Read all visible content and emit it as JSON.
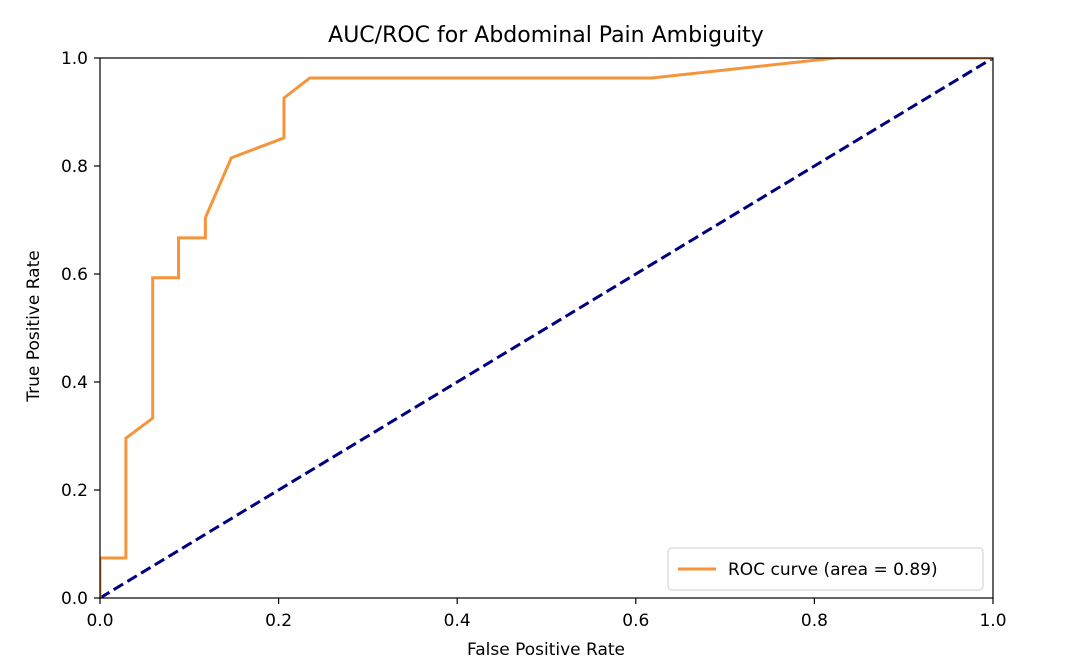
{
  "chart_data": {
    "type": "line",
    "title": "AUC/ROC for Abdominal Pain Ambiguity",
    "xlabel": "False Positive Rate",
    "ylabel": "True Positive Rate",
    "xlim": [
      0.0,
      1.0
    ],
    "ylim": [
      0.0,
      1.0
    ],
    "xticks": [
      "0.0",
      "0.2",
      "0.4",
      "0.6",
      "0.8",
      "1.0"
    ],
    "yticks": [
      "0.0",
      "0.2",
      "0.4",
      "0.6",
      "0.8",
      "1.0"
    ],
    "grid": false,
    "legend_position": "bottom-right",
    "series": [
      {
        "name": "ROC curve (area = 0.89)",
        "color": "#f5943a",
        "style": "solid",
        "x": [
          0.0,
          0.0,
          0.029,
          0.029,
          0.059,
          0.059,
          0.088,
          0.088,
          0.118,
          0.118,
          0.147,
          0.206,
          0.206,
          0.235,
          0.618,
          0.824,
          1.0
        ],
        "y": [
          0.0,
          0.074,
          0.074,
          0.296,
          0.333,
          0.593,
          0.593,
          0.667,
          0.667,
          0.704,
          0.815,
          0.852,
          0.926,
          0.963,
          0.963,
          1.0,
          1.0
        ]
      },
      {
        "color": "#000080",
        "style": "dashed",
        "x": [
          0.0,
          1.0
        ],
        "y": [
          0.0,
          1.0
        ]
      }
    ]
  }
}
